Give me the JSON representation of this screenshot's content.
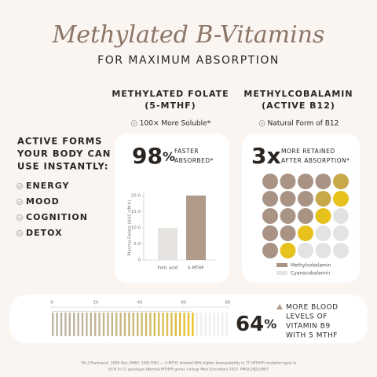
{
  "title": "Methylated B-Vitamins",
  "subtitle": "FOR MAXIMUM ABSORPTION",
  "left": {
    "heading": [
      "ACTIVE FORMS",
      "YOUR BODY CAN",
      "USE INSTANTLY:"
    ],
    "items": [
      "ENERGY",
      "MOOD",
      "COGNITION",
      "DETOX"
    ]
  },
  "columns": [
    {
      "heading": [
        "METHYLATED FOLATE",
        "(5-MTHF)"
      ],
      "note": "100× More Soluble*"
    },
    {
      "heading": [
        "METHYLCOBALAMIN",
        "(ACTIVE B12)"
      ],
      "note": "Natural Form of B12"
    }
  ],
  "card1": {
    "number": "98",
    "unit": "%",
    "text": [
      "FASTER",
      "ABSORBED*"
    ],
    "chart_data": {
      "type": "bar",
      "y_label": "Plasma Folate (AUC nM·h)",
      "categories": [
        "Folic acid",
        "5-MTHF"
      ],
      "values": [
        10,
        20
      ],
      "colors": [
        "#e6e3e1",
        "#b09a89"
      ],
      "ylim": [
        0,
        20
      ],
      "yticks": [
        0,
        {
          "value": 5,
          "label": "5.0"
        },
        {
          "value": 10,
          "label": "10.0"
        },
        {
          "value": 15,
          "label": "15.0"
        },
        {
          "value": 20,
          "label": "20.0"
        }
      ]
    }
  },
  "card2": {
    "number": "3x",
    "text": [
      "MORE RETAINED",
      "AFTER ABSORPTION*"
    ],
    "legend": [
      "Methylcobalamin",
      "Cyanocobalamin"
    ]
  },
  "bottom": {
    "number": "64",
    "unit": "%",
    "text": [
      "MORE BLOOD",
      "LEVELS OF",
      "VITAMIN B9",
      "WITH 5 MTHF"
    ],
    "chart_data": {
      "type": "gauge",
      "value": 64,
      "xlim": [
        0,
        80
      ],
      "xticks": [
        0,
        20,
        40,
        60,
        80
      ]
    }
  },
  "footnote": [
    "*Br J Pharmacol. 2009 Dec; PMID: 19917061 — 5-MTHF showed 98% higher bioavailability in TT (MTHFR mutation type) &",
    "61% in CC genotype (Normal MTHFR gene) +Integr Med (Encinitas) 2017, PMID:28223907"
  ]
}
